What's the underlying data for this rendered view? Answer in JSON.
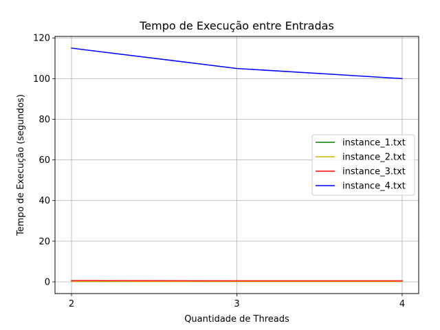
{
  "chart_data": {
    "type": "line",
    "title": "Tempo de Execução entre Entradas",
    "xlabel": "Quantidade de Threads",
    "ylabel": "Tempo de Execução (segundos)",
    "x": [
      2,
      3,
      4
    ],
    "xlim": [
      1.9,
      4.1
    ],
    "ylim": [
      -5.75,
      120.75
    ],
    "xticks": [
      2,
      3,
      4
    ],
    "yticks": [
      0,
      20,
      40,
      60,
      80,
      100,
      120
    ],
    "grid": true,
    "legend_position": "center-right",
    "series": [
      {
        "name": "instance_1.txt",
        "color": "#008000",
        "values": [
          0.3,
          0.3,
          0.3
        ]
      },
      {
        "name": "instance_2.txt",
        "color": "#d4b800",
        "values": [
          0.2,
          0.2,
          0.2
        ]
      },
      {
        "name": "instance_3.txt",
        "color": "#ff0000",
        "values": [
          0.6,
          0.5,
          0.5
        ]
      },
      {
        "name": "instance_4.txt",
        "color": "#0000ff",
        "values": [
          115,
          105,
          100
        ]
      }
    ]
  }
}
